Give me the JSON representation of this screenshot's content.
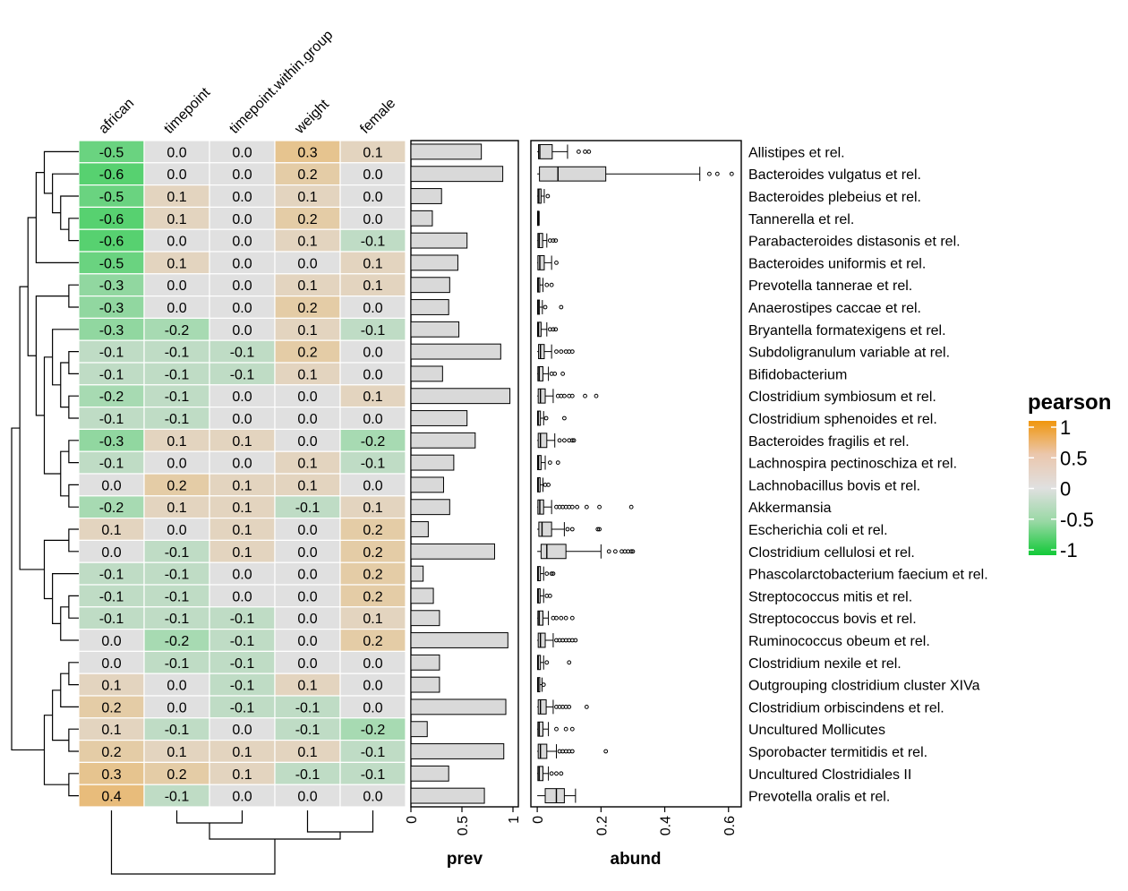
{
  "chart_data": {
    "type": "heatmap",
    "columns": [
      "african",
      "timepoint",
      "timepoint.within.group",
      "weight",
      "female"
    ],
    "rows": [
      {
        "taxon": "Allistipes et rel.",
        "values": [
          -0.5,
          -0.0,
          -0.0,
          0.3,
          0.1
        ],
        "prev": 0.69,
        "abund": {
          "min": 0.0,
          "q1": 0.004,
          "median": 0.008,
          "q3": 0.047,
          "max": 0.095,
          "outliers": [
            0.13,
            0.15,
            0.162
          ]
        }
      },
      {
        "taxon": "Bacteroides vulgatus et rel.",
        "values": [
          -0.6,
          0.0,
          -0.0,
          0.2,
          0.0
        ],
        "prev": 0.9,
        "abund": {
          "min": 0.0,
          "q1": 0.007,
          "median": 0.065,
          "q3": 0.215,
          "max": 0.51,
          "outliers": [
            0.54,
            0.565,
            0.61
          ]
        }
      },
      {
        "taxon": "Bacteroides plebeius et rel.",
        "values": [
          -0.5,
          0.1,
          0.0,
          0.1,
          0.0
        ],
        "prev": 0.3,
        "abund": {
          "min": 0.0,
          "q1": 0.002,
          "median": 0.005,
          "q3": 0.012,
          "max": 0.022,
          "outliers": [
            0.033
          ]
        }
      },
      {
        "taxon": "Tannerella et rel.",
        "values": [
          -0.6,
          0.1,
          0.0,
          0.2,
          -0.0
        ],
        "prev": 0.21,
        "abund": {
          "min": 0.0,
          "q1": 0.001,
          "median": 0.002,
          "q3": 0.003,
          "max": 0.006,
          "outliers": []
        }
      },
      {
        "taxon": "Parabacteroides distasonis et rel.",
        "values": [
          -0.6,
          0.0,
          0.0,
          0.1,
          -0.1
        ],
        "prev": 0.55,
        "abund": {
          "min": 0.0,
          "q1": 0.002,
          "median": 0.006,
          "q3": 0.017,
          "max": 0.03,
          "outliers": [
            0.04,
            0.05,
            0.058
          ]
        }
      },
      {
        "taxon": "Bacteroides uniformis et rel.",
        "values": [
          -0.5,
          0.1,
          -0.0,
          -0.0,
          0.1
        ],
        "prev": 0.46,
        "abund": {
          "min": 0.0,
          "q1": 0.002,
          "median": 0.008,
          "q3": 0.022,
          "max": 0.045,
          "outliers": [
            0.06
          ]
        }
      },
      {
        "taxon": "Prevotella tannerae et rel.",
        "values": [
          -0.3,
          -0.0,
          -0.0,
          0.1,
          0.1
        ],
        "prev": 0.38,
        "abund": {
          "min": 0.0,
          "q1": 0.001,
          "median": 0.003,
          "q3": 0.008,
          "max": 0.018,
          "outliers": [
            0.03,
            0.045
          ]
        }
      },
      {
        "taxon": "Anaerostipes caccae et rel.",
        "values": [
          -0.3,
          0.0,
          -0.0,
          0.2,
          -0.0
        ],
        "prev": 0.37,
        "abund": {
          "min": 0.0,
          "q1": 0.001,
          "median": 0.003,
          "q3": 0.007,
          "max": 0.016,
          "outliers": [
            0.025,
            0.075
          ]
        }
      },
      {
        "taxon": "Bryantella formatexigens et rel.",
        "values": [
          -0.3,
          -0.2,
          -0.0,
          0.1,
          -0.1
        ],
        "prev": 0.47,
        "abund": {
          "min": 0.0,
          "q1": 0.001,
          "median": 0.004,
          "q3": 0.012,
          "max": 0.03,
          "outliers": [
            0.04,
            0.05,
            0.058
          ]
        }
      },
      {
        "taxon": "Subdoligranulum variable at rel.",
        "values": [
          -0.1,
          -0.1,
          -0.1,
          0.2,
          0.0
        ],
        "prev": 0.88,
        "abund": {
          "min": 0.0,
          "q1": 0.004,
          "median": 0.01,
          "q3": 0.022,
          "max": 0.045,
          "outliers": [
            0.06,
            0.075,
            0.09,
            0.1,
            0.11
          ]
        }
      },
      {
        "taxon": "Bifidobacterium",
        "values": [
          -0.1,
          -0.1,
          -0.1,
          0.1,
          0.0
        ],
        "prev": 0.31,
        "abund": {
          "min": 0.0,
          "q1": 0.002,
          "median": 0.006,
          "q3": 0.018,
          "max": 0.035,
          "outliers": [
            0.045,
            0.055,
            0.08
          ]
        }
      },
      {
        "taxon": "Clostridium symbiosum et rel.",
        "values": [
          -0.2,
          -0.1,
          -0.0,
          0.0,
          0.1
        ],
        "prev": 0.97,
        "abund": {
          "min": 0.0,
          "q1": 0.003,
          "median": 0.01,
          "q3": 0.025,
          "max": 0.05,
          "outliers": [
            0.065,
            0.075,
            0.085,
            0.1,
            0.11,
            0.15,
            0.185
          ]
        }
      },
      {
        "taxon": "Clostridium sphenoides et rel.",
        "values": [
          -0.1,
          -0.1,
          0.0,
          -0.0,
          -0.0
        ],
        "prev": 0.55,
        "abund": {
          "min": 0.0,
          "q1": 0.001,
          "median": 0.003,
          "q3": 0.01,
          "max": 0.02,
          "outliers": [
            0.028,
            0.085
          ]
        }
      },
      {
        "taxon": "Bacteroides fragilis et rel.",
        "values": [
          -0.3,
          0.1,
          0.1,
          -0.0,
          -0.2
        ],
        "prev": 0.63,
        "abund": {
          "min": 0.0,
          "q1": 0.003,
          "median": 0.01,
          "q3": 0.03,
          "max": 0.055,
          "outliers": [
            0.07,
            0.085,
            0.1,
            0.11,
            0.115
          ]
        }
      },
      {
        "taxon": "Lachnospira pectinoschiza et rel.",
        "values": [
          -0.1,
          0.0,
          0.0,
          0.1,
          -0.1
        ],
        "prev": 0.42,
        "abund": {
          "min": 0.0,
          "q1": 0.001,
          "median": 0.004,
          "q3": 0.012,
          "max": 0.025,
          "outliers": [
            0.04,
            0.065
          ]
        }
      },
      {
        "taxon": "Lachnobacillus bovis et rel.",
        "values": [
          -0.0,
          0.2,
          0.1,
          0.1,
          -0.0
        ],
        "prev": 0.32,
        "abund": {
          "min": 0.0,
          "q1": 0.001,
          "median": 0.003,
          "q3": 0.009,
          "max": 0.018,
          "outliers": [
            0.025,
            0.035
          ]
        }
      },
      {
        "taxon": "Akkermansia",
        "values": [
          -0.2,
          0.1,
          0.1,
          -0.1,
          0.1
        ],
        "prev": 0.38,
        "abund": {
          "min": 0.0,
          "q1": 0.002,
          "median": 0.008,
          "q3": 0.02,
          "max": 0.045,
          "outliers": [
            0.06,
            0.07,
            0.08,
            0.09,
            0.1,
            0.11,
            0.125,
            0.155,
            0.195,
            0.295
          ]
        }
      },
      {
        "taxon": "Escherichia coli et rel.",
        "values": [
          0.1,
          0.0,
          0.1,
          -0.0,
          0.2
        ],
        "prev": 0.17,
        "abund": {
          "min": 0.0,
          "q1": 0.005,
          "median": 0.015,
          "q3": 0.045,
          "max": 0.085,
          "outliers": [
            0.095,
            0.11,
            0.19,
            0.195
          ]
        }
      },
      {
        "taxon": "Clostridium cellulosi et rel.",
        "values": [
          -0.0,
          -0.1,
          0.1,
          0.0,
          0.2
        ],
        "prev": 0.82,
        "abund": {
          "min": 0.0,
          "q1": 0.012,
          "median": 0.03,
          "q3": 0.09,
          "max": 0.2,
          "outliers": [
            0.225,
            0.245,
            0.265,
            0.275,
            0.285,
            0.295,
            0.3
          ]
        }
      },
      {
        "taxon": "Phascolarctobacterium faecium et rel.",
        "values": [
          -0.1,
          -0.1,
          0.0,
          -0.0,
          0.2
        ],
        "prev": 0.12,
        "abund": {
          "min": 0.0,
          "q1": 0.001,
          "median": 0.003,
          "q3": 0.01,
          "max": 0.02,
          "outliers": [
            0.03,
            0.045,
            0.05
          ]
        }
      },
      {
        "taxon": "Streptococcus mitis et rel.",
        "values": [
          -0.1,
          -0.1,
          -0.0,
          -0.0,
          0.2
        ],
        "prev": 0.22,
        "abund": {
          "min": 0.0,
          "q1": 0.001,
          "median": 0.003,
          "q3": 0.009,
          "max": 0.02,
          "outliers": [
            0.03,
            0.04
          ]
        }
      },
      {
        "taxon": "Streptococcus bovis et rel.",
        "values": [
          -0.1,
          -0.1,
          -0.1,
          -0.0,
          0.1
        ],
        "prev": 0.28,
        "abund": {
          "min": 0.0,
          "q1": 0.002,
          "median": 0.006,
          "q3": 0.018,
          "max": 0.035,
          "outliers": [
            0.05,
            0.06,
            0.075,
            0.09,
            0.11
          ]
        }
      },
      {
        "taxon": "Ruminococcus obeum et rel.",
        "values": [
          0.0,
          -0.2,
          -0.1,
          -0.0,
          0.2
        ],
        "prev": 0.95,
        "abund": {
          "min": 0.0,
          "q1": 0.003,
          "median": 0.01,
          "q3": 0.025,
          "max": 0.05,
          "outliers": [
            0.06,
            0.07,
            0.08,
            0.09,
            0.1,
            0.11,
            0.12
          ]
        }
      },
      {
        "taxon": "Clostridium nexile et rel.",
        "values": [
          0.0,
          -0.1,
          -0.1,
          0.0,
          -0.0
        ],
        "prev": 0.28,
        "abund": {
          "min": 0.0,
          "q1": 0.001,
          "median": 0.003,
          "q3": 0.01,
          "max": 0.02,
          "outliers": [
            0.03,
            0.1
          ]
        }
      },
      {
        "taxon": "Outgrouping clostridium cluster XIVa",
        "values": [
          0.1,
          -0.0,
          -0.1,
          0.1,
          0.0
        ],
        "prev": 0.28,
        "abund": {
          "min": 0.0,
          "q1": 0.001,
          "median": 0.003,
          "q3": 0.008,
          "max": 0.015,
          "outliers": [
            0.02
          ]
        }
      },
      {
        "taxon": "Clostridium orbiscindens et rel.",
        "values": [
          0.2,
          0.0,
          -0.1,
          -0.1,
          0.0
        ],
        "prev": 0.93,
        "abund": {
          "min": 0.0,
          "q1": 0.003,
          "median": 0.01,
          "q3": 0.028,
          "max": 0.05,
          "outliers": [
            0.06,
            0.07,
            0.08,
            0.09,
            0.1,
            0.155
          ]
        }
      },
      {
        "taxon": "Uncultured Mollicutes",
        "values": [
          0.1,
          -0.1,
          0.0,
          -0.1,
          -0.2
        ],
        "prev": 0.16,
        "abund": {
          "min": 0.0,
          "q1": 0.002,
          "median": 0.006,
          "q3": 0.018,
          "max": 0.035,
          "outliers": [
            0.06,
            0.09,
            0.11
          ]
        }
      },
      {
        "taxon": "Sporobacter termitidis et rel.",
        "values": [
          0.2,
          0.1,
          0.1,
          0.1,
          -0.1
        ],
        "prev": 0.91,
        "abund": {
          "min": 0.0,
          "q1": 0.003,
          "median": 0.01,
          "q3": 0.03,
          "max": 0.06,
          "outliers": [
            0.07,
            0.08,
            0.09,
            0.1,
            0.11,
            0.215
          ]
        }
      },
      {
        "taxon": "Uncultured Clostridiales II",
        "values": [
          0.3,
          0.2,
          0.1,
          -0.1,
          -0.1
        ],
        "prev": 0.37,
        "abund": {
          "min": 0.0,
          "q1": 0.002,
          "median": 0.006,
          "q3": 0.018,
          "max": 0.035,
          "outliers": [
            0.045,
            0.06,
            0.075
          ]
        }
      },
      {
        "taxon": "Prevotella oralis et rel.",
        "values": [
          0.4,
          -0.1,
          -0.0,
          -0.0,
          0.0
        ],
        "prev": 0.72,
        "abund": {
          "min": 0.0,
          "q1": 0.025,
          "median": 0.06,
          "q3": 0.085,
          "max": 0.12,
          "outliers": []
        }
      }
    ],
    "prev_panel": {
      "xlabel": "prev",
      "ticks": [
        "0",
        "0.5",
        "1"
      ],
      "xlim": [
        0,
        1
      ]
    },
    "abund_panel": {
      "xlabel": "abund",
      "ticks": [
        "0",
        "0.2",
        "0.4",
        "0.6"
      ],
      "xlim": [
        -0.02,
        0.64
      ]
    },
    "legend": {
      "title": "pearson",
      "labels": [
        "1",
        "0.5",
        "0",
        "-0.5",
        "-1"
      ],
      "range": [
        -1,
        1
      ],
      "placement": "right"
    },
    "colors": {
      "negative": "#12c938",
      "zero": "#e0e0e0",
      "positive": "#f0960d",
      "bar_fill": "#d9d9d9",
      "box_fill": "#d9d9d9"
    }
  }
}
